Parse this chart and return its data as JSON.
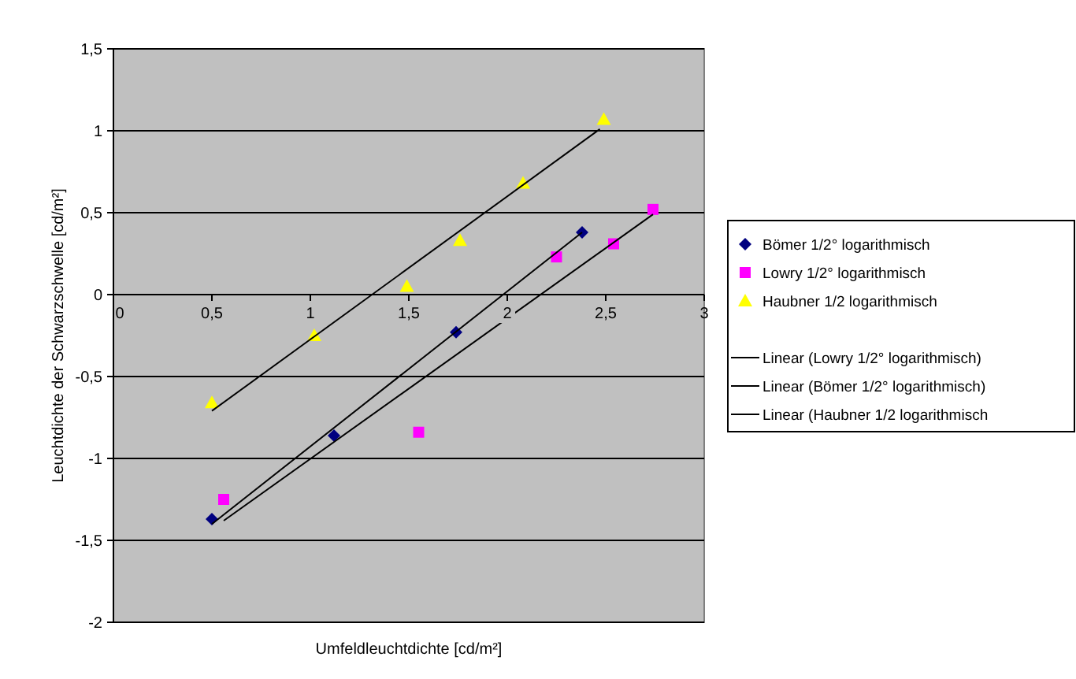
{
  "chart_data": {
    "type": "scatter",
    "xlabel": "Umfeldleuchtdichte [cd/m²]",
    "ylabel": "Leuchtdichte der Schwarzschwelle [cd/m²]",
    "xlim": [
      0,
      3
    ],
    "ylim": [
      -2,
      1.5
    ],
    "xticks": [
      0,
      {
        "value": 0.5,
        "label": "0,5"
      },
      1,
      {
        "value": 1.5,
        "label": "1,5"
      },
      2,
      {
        "value": 2.5,
        "label": "2,5"
      },
      3
    ],
    "yticks": [
      -2,
      {
        "value": -1.5,
        "label": "-1,5"
      },
      -1,
      {
        "value": -0.5,
        "label": "-0,5"
      },
      0,
      {
        "value": 0.5,
        "label": "0,5"
      },
      1,
      {
        "value": 1.5,
        "label": "1,5"
      }
    ],
    "grid": "y",
    "legend": "right",
    "series": [
      {
        "name": "Bömer 1/2° logarithmisch",
        "color": "#000080",
        "marker": "diamond",
        "x": [
          0.5,
          1.12,
          1.74,
          2.38
        ],
        "values": [
          -1.37,
          -0.86,
          -0.23,
          0.38
        ]
      },
      {
        "name": "Lowry 1/2° logarithmisch",
        "color": "#ff00ff",
        "marker": "square",
        "x": [
          0.56,
          1.55,
          2.25,
          2.54,
          2.74
        ],
        "values": [
          -1.25,
          -0.84,
          0.23,
          0.31,
          0.52
        ]
      },
      {
        "name": "Haubner 1/2 logarithmisch",
        "color": "#ffff00",
        "marker": "triangle",
        "x": [
          0.5,
          1.02,
          1.49,
          1.76,
          2.08,
          2.49
        ],
        "values": [
          -0.66,
          -0.25,
          0.05,
          0.33,
          0.68,
          1.07
        ]
      },
      {
        "name": "Linear (Lowry 1/2° logarithmisch)",
        "type": "line",
        "color": "#000000",
        "marker": "none",
        "x": [
          0.56,
          2.74
        ],
        "values": [
          -1.38,
          0.49
        ]
      },
      {
        "name": "Linear (Bömer 1/2° logarithmisch)",
        "type": "line",
        "color": "#000000",
        "marker": "none",
        "x": [
          0.5,
          2.38
        ],
        "values": [
          -1.4,
          0.38
        ]
      },
      {
        "name": "Linear (Haubner 1/2 logarithmisch",
        "type": "line",
        "color": "#000000",
        "marker": "none",
        "x": [
          0.5,
          2.47
        ],
        "values": [
          -0.71,
          1.01
        ]
      }
    ]
  }
}
